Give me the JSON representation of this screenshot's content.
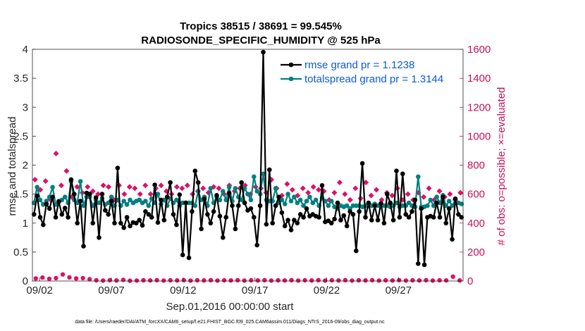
{
  "chart_data": {
    "type": "line",
    "title": "Tropics 38515 / 38691 = 99.545%",
    "subtitle": "RADIOSONDE_SPECIFIC_HUMIDITY @ 525 hPa",
    "xlabel": "Sep.01,2016 00:00:00 start",
    "ylabel": "rmse and totalspread",
    "y2label": "# of obs: o=possible; ×=evaluated",
    "footer": "data file: /Users/raeder/DAI/ATM_forcXX/CAM6_setup/f.e21.FHIST_BGC.f09_025.CAM6assim.011/Diags_NTrS_2016-09/obs_diag_output.nc",
    "xlim": [
      1.5,
      31.5
    ],
    "ylim": [
      0,
      4
    ],
    "y2lim": [
      0,
      1600
    ],
    "xticks": [
      2,
      7,
      12,
      17,
      22,
      27
    ],
    "xtick_labels": [
      "09/02",
      "09/07",
      "09/12",
      "09/17",
      "09/22",
      "09/27"
    ],
    "yticks": [
      0,
      0.5,
      1,
      1.5,
      2,
      2.5,
      3,
      3.5,
      4
    ],
    "ytick_labels": [
      "0",
      "0.5",
      "1",
      "1.5",
      "2",
      "2.5",
      "3",
      "3.5",
      "4"
    ],
    "y2ticks": [
      0,
      200,
      400,
      600,
      800,
      1000,
      1200,
      1400,
      1600
    ],
    "y2tick_labels": [
      "0",
      "200",
      "400",
      "600",
      "800",
      "1000",
      "1200",
      "1400",
      "1600"
    ],
    "legend_position": "top-right",
    "colors": {
      "rmse": "#000000",
      "spread": "#008080",
      "obs": "#dd1166",
      "legend_text": "#0b5bd6",
      "right_axis": "#c8105a"
    },
    "series": [
      {
        "name": "rmse grand pr = 1.1238",
        "axis": "left",
        "values": [
          1.15,
          1.47,
          1.1,
          0.97,
          1.33,
          1.25,
          1.45,
          1.1,
          1.37,
          1.15,
          1.26,
          1.1,
          1.75,
          1.5,
          1.0,
          1.38,
          0.6,
          1.52,
          1.5,
          1.0,
          1.44,
          0.75,
          1.5,
          1.22,
          1.15,
          1.38,
          1.0,
          1.95,
          1.0,
          0.92,
          1.1,
          0.95,
          1.01,
          1.0,
          1.05,
          0.96,
          1.2,
          1.15,
          1.1,
          1.66,
          1.01,
          1.4,
          1.05,
          1.45,
          1.7,
          1.15,
          0.97,
          1.49,
          0.45,
          1.35,
          0.4,
          1.2,
          1.9,
          1.7,
          0.9,
          1.42,
          1.15,
          1.0,
          1.2,
          1.48,
          1.12,
          0.75,
          1.1,
          1.52,
          1.3,
          0.9,
          1.3,
          1.7,
          1.35,
          1.22,
          1.25,
          1.1,
          0.62,
          1.3,
          3.95,
          0.98,
          1.92,
          1.0,
          1.3,
          1.45,
          1.18,
          0.95,
          1.05,
          0.88,
          1.05,
          1.0,
          1.15,
          1.1,
          1.25,
          1.12,
          1.15,
          1.12,
          1.1,
          1.65,
          1.02,
          1.04,
          1.0,
          1.07,
          1.35,
          1.05,
          1.13,
          0.95,
          1.2,
          1.15,
          0.52,
          1.2,
          2.03,
          1.1,
          1.35,
          1.05,
          1.3,
          1.05,
          1.34,
          1.0,
          1.5,
          1.35,
          1.05,
          1.9,
          1.1,
          1.85,
          1.15,
          1.1,
          1.2,
          1.4,
          0.3,
          1.25,
          0.28,
          1.1,
          1.12,
          1.1,
          1.35,
          1.1,
          1.45,
          1.0,
          1.25,
          0.72,
          1.42,
          1.15,
          1.1
        ]
      },
      {
        "name": "totalspread grand pr = 1.3144",
        "axis": "left",
        "values": [
          1.35,
          1.62,
          1.4,
          1.32,
          1.38,
          1.45,
          1.62,
          1.32,
          1.38,
          1.4,
          1.45,
          1.35,
          1.72,
          1.4,
          1.35,
          1.72,
          1.3,
          1.45,
          1.45,
          1.3,
          1.4,
          1.35,
          1.43,
          1.32,
          1.35,
          1.45,
          1.3,
          1.4,
          1.3,
          1.38,
          1.32,
          1.4,
          1.35,
          1.38,
          1.4,
          1.35,
          1.38,
          1.3,
          1.42,
          1.35,
          1.5,
          1.33,
          1.4,
          1.3,
          1.42,
          1.35,
          1.4,
          1.3,
          1.35,
          1.35,
          1.35,
          1.35,
          1.3,
          1.55,
          1.4,
          1.45,
          1.3,
          1.6,
          1.35,
          1.45,
          1.4,
          1.55,
          1.4,
          1.62,
          1.38,
          1.6,
          1.45,
          1.4,
          1.6,
          1.5,
          1.4,
          1.8,
          1.55,
          1.5,
          1.85,
          1.4,
          1.38,
          1.38,
          1.6,
          1.35,
          1.4,
          1.33,
          1.5,
          1.38,
          1.45,
          1.35,
          1.4,
          1.3,
          1.38,
          1.45,
          1.35,
          1.4,
          1.3,
          1.43,
          1.38,
          1.3,
          1.38,
          1.28,
          1.25,
          1.3,
          1.28,
          1.3,
          1.25,
          1.3,
          1.3,
          1.3,
          1.28,
          1.3,
          1.3,
          1.3,
          1.33,
          1.3,
          1.33,
          1.3,
          1.3,
          1.28,
          1.3,
          1.35,
          1.28,
          1.3,
          1.3,
          1.35,
          1.3,
          1.28,
          1.8,
          1.28,
          1.28,
          1.3,
          1.4,
          1.3,
          1.45,
          1.35,
          1.48,
          1.3,
          1.38,
          1.3,
          1.35,
          1.35,
          1.33
        ]
      },
      {
        "name": "obs possible",
        "axis": "right",
        "marker": "o",
        "values": [
          18,
          24,
          15,
          20,
          45,
          25,
          18,
          20,
          12,
          5,
          3,
          6,
          4,
          8,
          2,
          3,
          5,
          4,
          6,
          3,
          5,
          4,
          6,
          3,
          5,
          4,
          6,
          3,
          5,
          4,
          6,
          3,
          5,
          4,
          6,
          3,
          5,
          4,
          6,
          3,
          5,
          4,
          6,
          3,
          5,
          4,
          6,
          3,
          5,
          4,
          6,
          3,
          5,
          4,
          6,
          3,
          5,
          4,
          6,
          3,
          5,
          4,
          30,
          4
        ]
      },
      {
        "name": "obs evaluated",
        "axis": "right",
        "marker": "x",
        "values": [
          700,
          630,
          690,
          560,
          880,
          660,
          760,
          580,
          650,
          610,
          650,
          620,
          600,
          660,
          650,
          560,
          660,
          600,
          650,
          640,
          600,
          660,
          600,
          640,
          660,
          620,
          600,
          650,
          640,
          660,
          600,
          620,
          640,
          610,
          650,
          640,
          600,
          660,
          620,
          640,
          660,
          600,
          650,
          640,
          610,
          700,
          640,
          590,
          670,
          630,
          590,
          640,
          610,
          650,
          630,
          620,
          560,
          610,
          680,
          600,
          560,
          640,
          570,
          680,
          590,
          630,
          560,
          610,
          590,
          640,
          560,
          600,
          560,
          610,
          580,
          640,
          560,
          620,
          580,
          600,
          560,
          610
        ]
      }
    ]
  }
}
